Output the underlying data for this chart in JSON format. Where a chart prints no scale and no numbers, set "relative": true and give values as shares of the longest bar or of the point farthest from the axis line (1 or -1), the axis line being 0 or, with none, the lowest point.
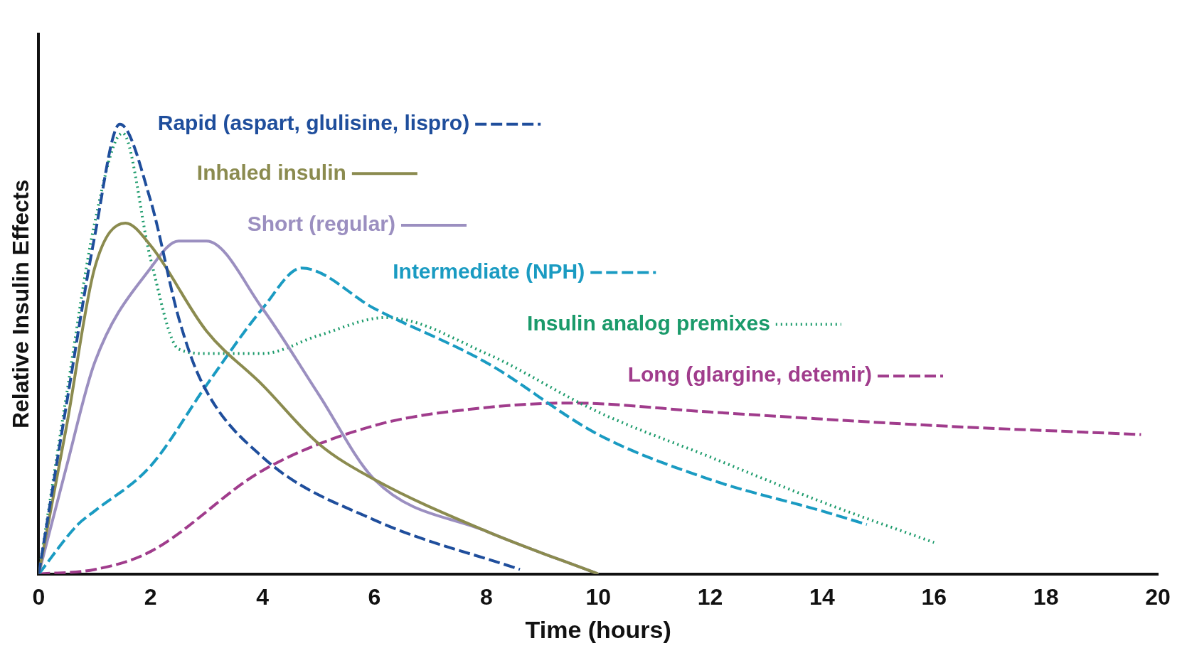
{
  "chart_data": {
    "type": "line",
    "xlabel": "Time (hours)",
    "ylabel": "Relative Insulin Effects",
    "relative": true,
    "xlim": [
      0,
      20
    ],
    "xticks": [
      0,
      2,
      4,
      6,
      8,
      10,
      12,
      14,
      16,
      18,
      20
    ],
    "grid": false,
    "legend": "top right",
    "marker": "none",
    "series": [
      {
        "name": "Rapid (aspart, glulisine, lispro)",
        "color": "#1f4e9c",
        "line_style": "dashed",
        "x": [
          0,
          0.5,
          1,
          1.45,
          2,
          2.5,
          2.9,
          4,
          6,
          8.6
        ],
        "values": [
          0,
          0.38,
          0.75,
          1,
          0.83,
          0.57,
          0.43,
          0.26,
          0.12,
          0.01
        ]
      },
      {
        "name": "Inhaled insulin",
        "color": "#8b8b4f",
        "line_style": "solid",
        "x": [
          0,
          0.5,
          1,
          1.55,
          2,
          3,
          4,
          5,
          6,
          8,
          10
        ],
        "values": [
          0,
          0.33,
          0.68,
          0.78,
          0.73,
          0.54,
          0.42,
          0.29,
          0.21,
          0.095,
          0
        ]
      },
      {
        "name": "Short (regular)",
        "color": "#9b8fc0",
        "line_style": "solid",
        "x": [
          0,
          0.5,
          1,
          2,
          2.5,
          3,
          4,
          5,
          6,
          8,
          10
        ],
        "values": [
          0,
          0.24,
          0.47,
          0.68,
          0.74,
          0.74,
          0.59,
          0.4,
          0.21,
          0.095,
          0
        ]
      },
      {
        "name": "Intermediate (NPH)",
        "color": "#1a9bc2",
        "line_style": "dashed",
        "x": [
          0,
          0.7,
          1,
          2,
          3,
          4,
          4.7,
          6,
          8,
          10,
          12,
          14,
          14.8
        ],
        "values": [
          0,
          0.11,
          0.14,
          0.24,
          0.42,
          0.59,
          0.68,
          0.59,
          0.47,
          0.31,
          0.21,
          0.14,
          0.11
        ]
      },
      {
        "name": "Insulin analog premixes",
        "color": "#1a9a6a",
        "line_style": "dotted",
        "x": [
          0,
          0.5,
          1,
          1.5,
          2,
          2.5,
          3,
          4,
          5,
          6.2,
          8,
          10,
          12,
          14,
          16
        ],
        "values": [
          0,
          0.4,
          0.78,
          0.98,
          0.7,
          0.5,
          0.49,
          0.49,
          0.53,
          0.57,
          0.49,
          0.36,
          0.26,
          0.16,
          0.07
        ]
      },
      {
        "name": "Long (glargine, detemir)",
        "color": "#a03c8c",
        "line_style": "dashed",
        "x": [
          0,
          1,
          2,
          4,
          6,
          8,
          9.5,
          12,
          16,
          19.7
        ],
        "values": [
          0,
          0.01,
          0.05,
          0.23,
          0.33,
          0.37,
          0.38,
          0.36,
          0.33,
          0.31
        ]
      }
    ]
  }
}
